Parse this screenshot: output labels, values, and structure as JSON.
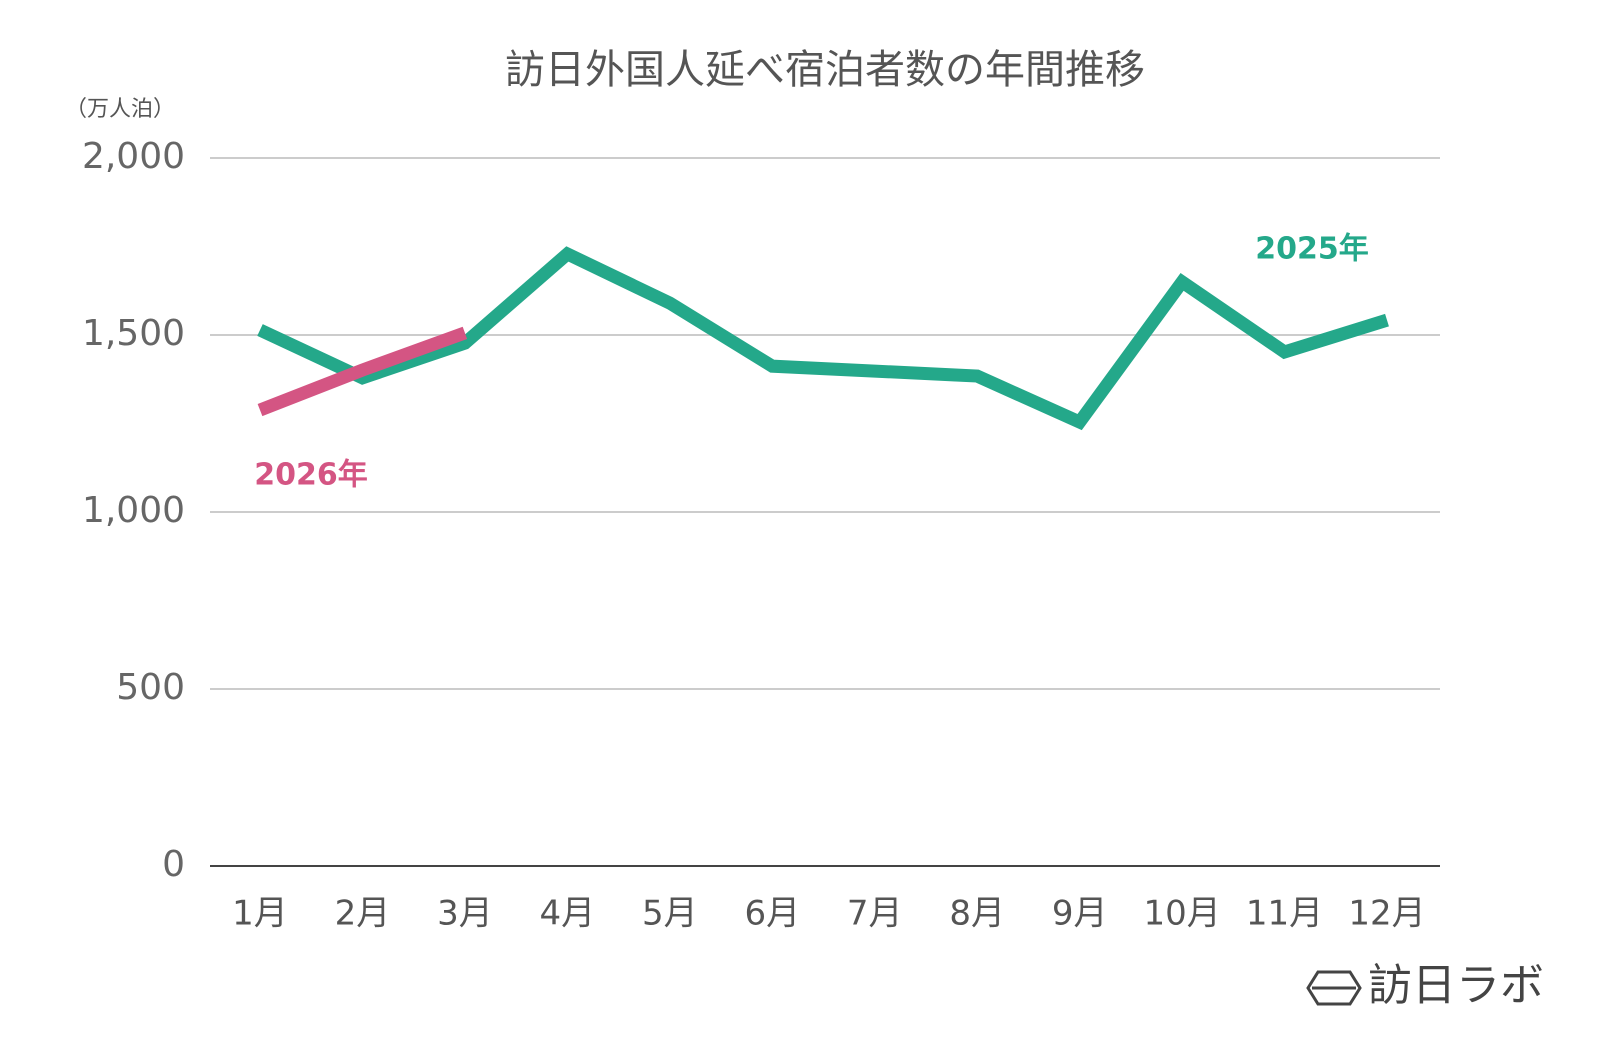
{
  "chart_data": {
    "type": "line",
    "title": "訪日外国人延べ宿泊者数の年間推移",
    "y_axis_label": "（万人泊）",
    "categories": [
      "1月",
      "2月",
      "3月",
      "4月",
      "5月",
      "6月",
      "7月",
      "8月",
      "9月",
      "10月",
      "11月",
      "12月"
    ],
    "series": [
      {
        "name": "2025年",
        "color": "#24a88a",
        "values": [
          1514,
          1379,
          1477,
          1729,
          1590,
          1412,
          1398,
          1384,
          1254,
          1650,
          1452,
          1542
        ]
      },
      {
        "name": "2026年",
        "color": "#d45583",
        "values": [
          1288,
          1401,
          1506,
          null,
          null,
          null,
          null,
          null,
          null,
          null,
          null,
          null
        ]
      }
    ],
    "ylim": [
      0,
      2000
    ],
    "yticks": [
      0,
      500,
      {
        "value": 1000,
        "label": "1,000"
      },
      {
        "value": 1500,
        "label": "1,500"
      },
      {
        "value": 2000,
        "label": "2,000"
      }
    ],
    "grid": true,
    "watermark": "訪日ラボ"
  }
}
